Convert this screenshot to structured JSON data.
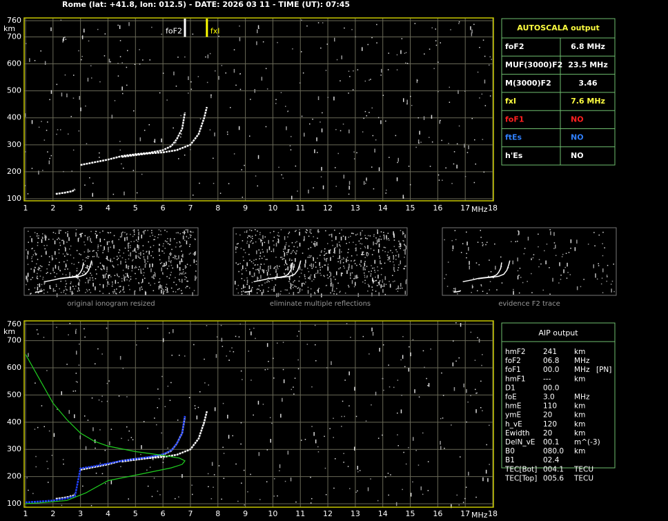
{
  "header": "Rome (lat: +41.8, lon: 012.5) - DATE: 2026 03 11 - TIME (UT): 07:45",
  "chart_data": [
    {
      "type": "line",
      "xlabel": "MHz",
      "ylabel": "km",
      "xlim": [
        1,
        18
      ],
      "ylim": [
        100,
        760
      ],
      "xticks": [
        1,
        2,
        3,
        4,
        5,
        6,
        7,
        8,
        9,
        10,
        11,
        12,
        13,
        14,
        15,
        16,
        17,
        18
      ],
      "yticks": [
        100,
        200,
        300,
        400,
        500,
        600,
        700,
        760
      ],
      "grid": true,
      "series": [
        {
          "color": "#ffffff",
          "x": [
            2.1,
            2.4,
            2.7,
            2.8,
            null,
            3.0,
            3.5,
            4.0,
            4.5,
            5.0,
            5.5,
            6.0,
            6.3,
            6.5,
            6.7,
            6.8
          ],
          "values": [
            118,
            122,
            128,
            135,
            null,
            225,
            235,
            245,
            258,
            265,
            270,
            280,
            295,
            320,
            360,
            420
          ]
        },
        {
          "color": "#ffffff",
          "x": [
            4.5,
            5.0,
            5.5,
            6.0,
            6.5,
            7.0,
            7.3,
            7.5,
            7.6
          ],
          "values": [
            255,
            262,
            268,
            272,
            280,
            300,
            340,
            400,
            440
          ]
        }
      ],
      "annotations": [
        {
          "text": "foF2",
          "x": 6.8,
          "color": "#ffffff"
        },
        {
          "text": "fxI",
          "x": 7.6,
          "color": "#ffff00"
        }
      ]
    },
    {
      "type": "line",
      "xlabel": "MHz",
      "ylabel": "km",
      "xlim": [
        1,
        18
      ],
      "ylim": [
        100,
        760
      ],
      "xticks": [
        1,
        2,
        3,
        4,
        5,
        6,
        7,
        8,
        9,
        10,
        11,
        12,
        13,
        14,
        15,
        16,
        17,
        18
      ],
      "yticks": [
        100,
        200,
        300,
        400,
        500,
        600,
        700,
        760
      ],
      "grid": true,
      "series": [
        {
          "color": "#ffffff",
          "x": [
            2.1,
            2.4,
            2.7,
            2.8,
            null,
            3.0,
            3.5,
            4.0,
            4.5,
            5.0,
            5.5,
            6.0,
            6.3,
            6.5,
            6.7,
            6.8
          ],
          "values": [
            118,
            122,
            128,
            135,
            null,
            225,
            235,
            245,
            258,
            265,
            270,
            280,
            295,
            320,
            360,
            420
          ]
        },
        {
          "color": "#ffffff",
          "x": [
            4.5,
            5.0,
            5.5,
            6.0,
            6.5,
            7.0,
            7.3,
            7.5,
            7.6
          ],
          "values": [
            255,
            262,
            268,
            272,
            280,
            300,
            340,
            400,
            440
          ]
        },
        {
          "color": "#2040ff",
          "x": [
            1.0,
            1.5,
            2.0,
            2.5,
            2.8,
            3.0,
            3.5,
            4.0,
            4.5,
            5.0,
            5.5,
            6.0,
            6.3,
            6.5,
            6.7,
            6.8
          ],
          "values": [
            105,
            108,
            112,
            120,
            128,
            230,
            238,
            248,
            258,
            265,
            272,
            282,
            296,
            320,
            360,
            425
          ]
        },
        {
          "color": "#20d020",
          "x": [
            1.0,
            1.5,
            2.0,
            2.5,
            3.0,
            3.5,
            4.0,
            5.0,
            6.0,
            6.6,
            6.8,
            6.7,
            6.3,
            5.0,
            4.0,
            3.2,
            2.5,
            1.5,
            1.0
          ],
          "values": [
            650,
            560,
            470,
            410,
            360,
            330,
            312,
            292,
            278,
            268,
            258,
            245,
            232,
            205,
            185,
            140,
            112,
            103,
            100
          ]
        }
      ],
      "annotations": []
    }
  ],
  "autoscala": {
    "title": "AUTOSCALA output",
    "rows": [
      {
        "label": "foF2",
        "value": "6.8 MHz",
        "color": "#ffffff",
        "value_color": "#ffffff"
      },
      {
        "label": "MUF(3000)F2",
        "value": "23.5 MHz",
        "color": "#ffffff",
        "value_color": "#ffffff"
      },
      {
        "label": "M(3000)F2",
        "value": "3.46",
        "color": "#ffffff",
        "value_color": "#ffffff"
      },
      {
        "label": "fxI",
        "value": "7.6 MHz",
        "color": "#ffff40",
        "value_color": "#ffff40"
      },
      {
        "label": "foF1",
        "value": "NO",
        "color": "#ff2020",
        "value_color": "#ff2020"
      },
      {
        "label": "ftEs",
        "value": "NO",
        "color": "#3080ff",
        "value_color": "#3080ff"
      },
      {
        "label": "h'Es",
        "value": "NO",
        "color": "#ffffff",
        "value_color": "#ffffff"
      }
    ]
  },
  "thumbnails": [
    "original ionogram resized",
    "eliminate multiple reflections",
    "evidence F2 trace"
  ],
  "aip": {
    "title": "AIP output",
    "rows": [
      [
        "hmF2",
        "241",
        "km"
      ],
      [
        "foF2",
        "06.8",
        "MHz"
      ],
      [
        "foF1",
        "00.0",
        "MHz",
        "[PN]"
      ],
      [
        "hmF1",
        "---",
        "km"
      ],
      [
        "D1",
        "00.0"
      ],
      [
        "foE",
        "3.0",
        "MHz"
      ],
      [
        "hmE",
        "110",
        "km"
      ],
      [
        "ymE",
        "20",
        "km"
      ],
      [
        "h_vE",
        "120",
        "km"
      ],
      [
        "Ewidth",
        "20",
        "km"
      ],
      [
        "DelN_vE",
        "00.1",
        "m^(-3)"
      ],
      [
        "B0",
        "080.0",
        "km"
      ],
      [
        "B1",
        "02.4"
      ],
      [
        "TEC[Bot]",
        "004.1",
        "TECU"
      ],
      [
        "TEC[Top]",
        "005.6",
        "TECU"
      ]
    ]
  }
}
